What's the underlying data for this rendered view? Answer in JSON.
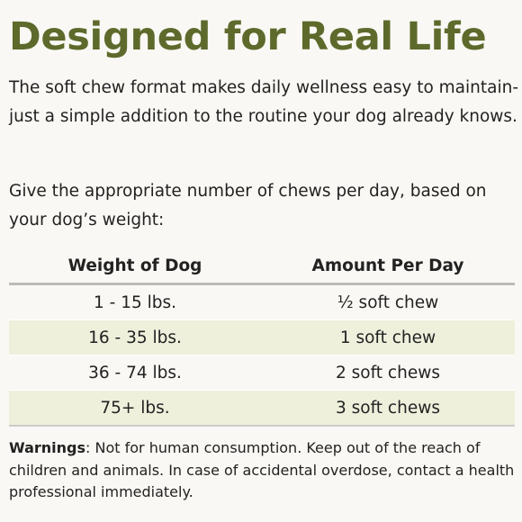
{
  "header": {
    "title": "Designed for Real Life"
  },
  "paragraphs": [
    "The soft chew format makes daily wellness easy to maintain- just a simple addition to the routine your dog already knows.",
    "Give the appropriate number of chews per day, based on your dog’s weight:"
  ],
  "table": {
    "columns": [
      "Weight of Dog",
      "Amount Per Day"
    ],
    "rows": [
      [
        "1 - 15 lbs.",
        "½ soft chew"
      ],
      [
        "16 - 35 lbs.",
        "1 soft chew"
      ],
      [
        "36 - 74 lbs.",
        "2 soft chews"
      ],
      [
        "75+ lbs.",
        "3 soft chews"
      ]
    ]
  },
  "warnings": {
    "label": "Warnings",
    "text": ": Not for human consumption. Keep out of the reach of children and animals. In case of accidental overdose, contact a health professional immediately."
  }
}
